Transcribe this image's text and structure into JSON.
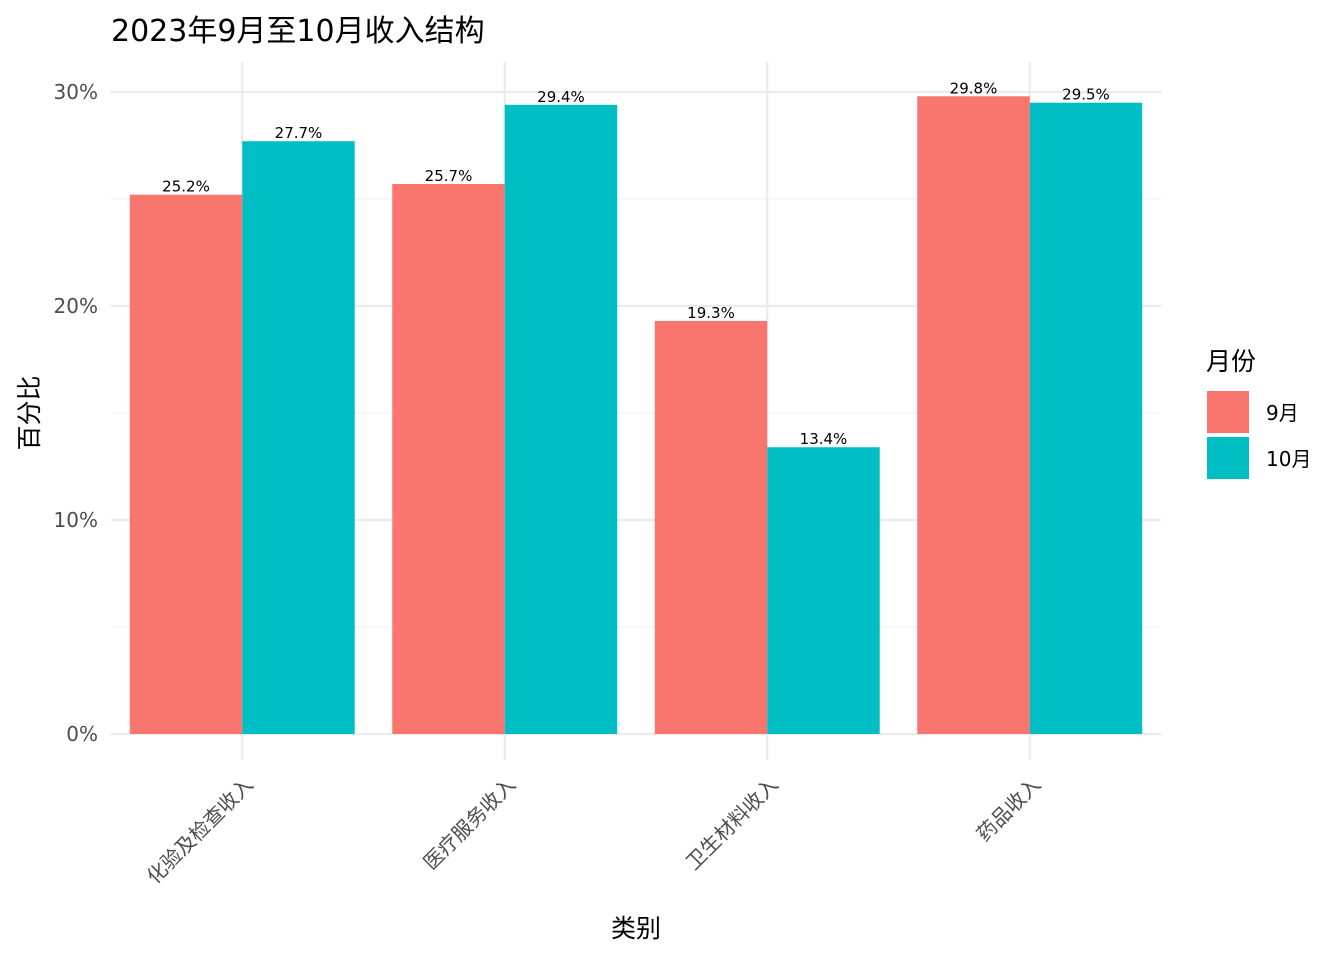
{
  "chart_data": {
    "type": "bar",
    "title": "2023年9月至10月收入结构",
    "xlabel": "类别",
    "ylabel": "百分比",
    "categories": [
      "化验及检查收入",
      "医疗服务收入",
      "卫生材料收入",
      "药品收入"
    ],
    "series": [
      {
        "name": "9月",
        "color": "#F8766D",
        "values": [
          25.2,
          25.7,
          19.3,
          29.8
        ],
        "labels": [
          "25.2%",
          "25.7%",
          "19.3%",
          "29.8%"
        ]
      },
      {
        "name": "10月",
        "color": "#00BFC4",
        "values": [
          27.7,
          29.4,
          13.4,
          29.5
        ],
        "labels": [
          "27.7%",
          "29.4%",
          "13.4%",
          "29.5%"
        ]
      }
    ],
    "yticks": [
      0,
      10,
      20,
      30
    ],
    "ytick_labels": [
      "0%",
      "10%",
      "20%",
      "30%"
    ],
    "ylim": [
      0,
      30
    ],
    "legend": {
      "title": "月份",
      "position": "right"
    },
    "grid": true
  }
}
